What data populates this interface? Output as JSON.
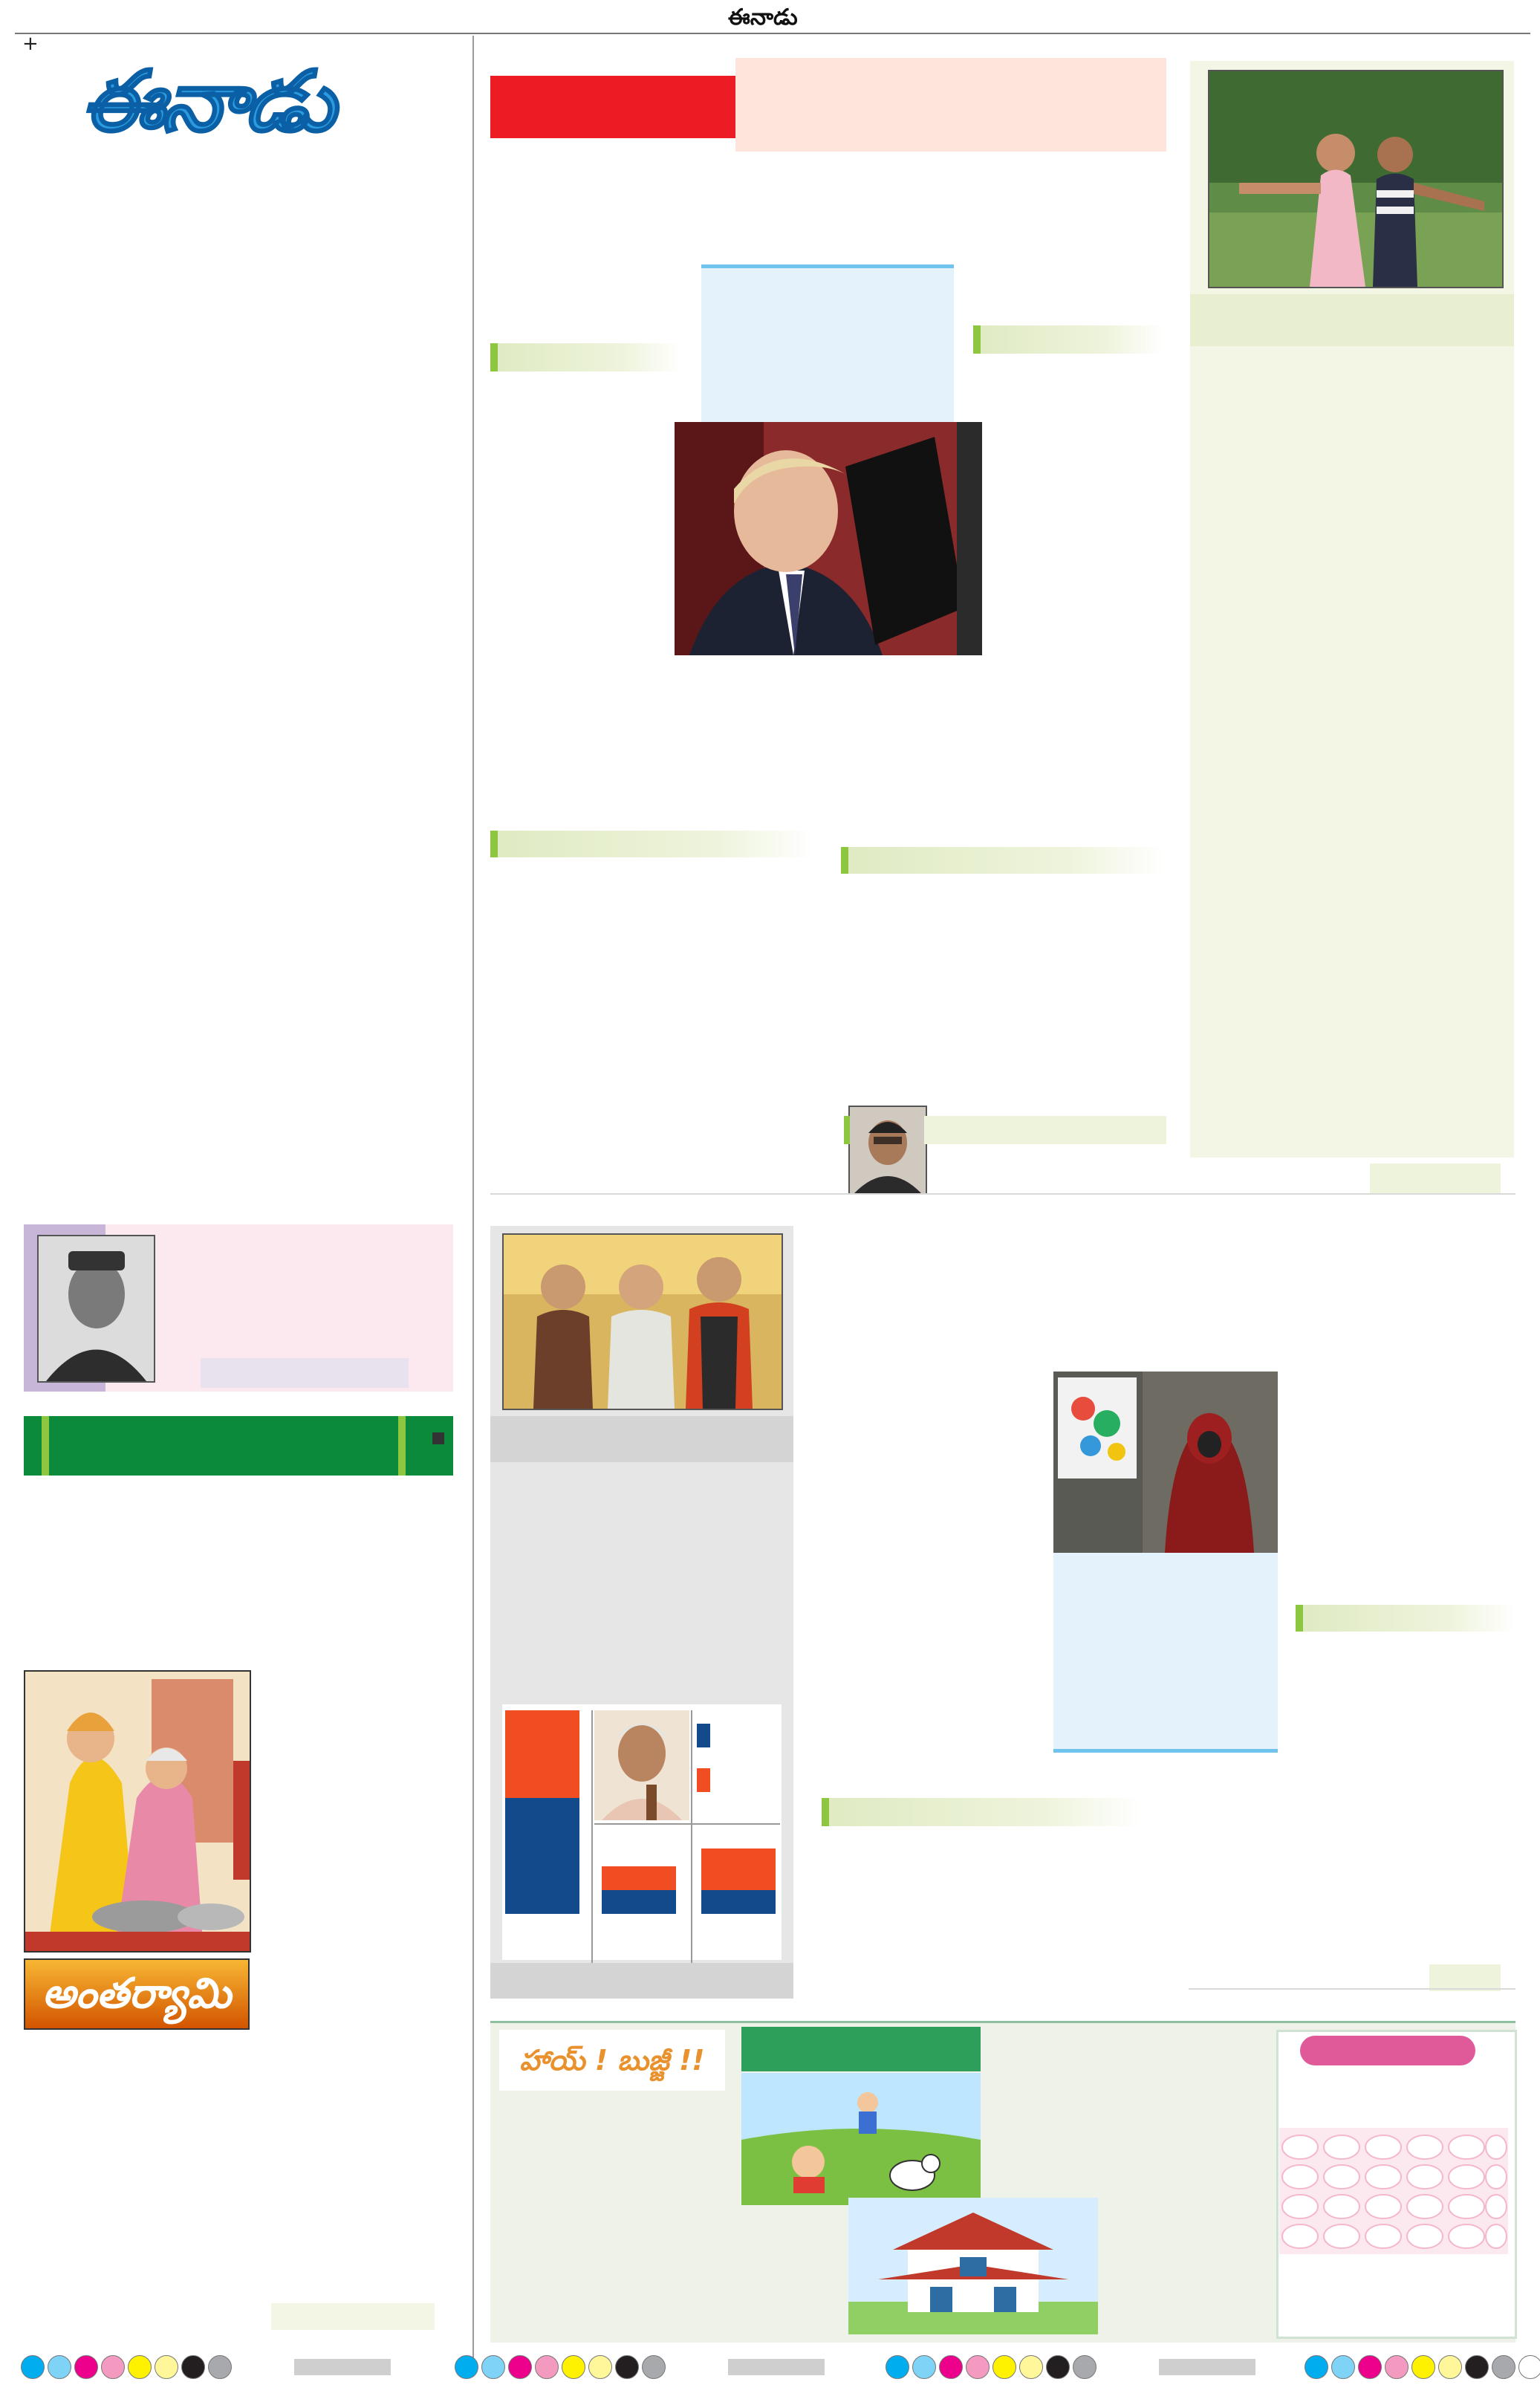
{
  "masthead": {
    "top_label": "ఈనాడు",
    "logo_text": "ఈనాడు",
    "crop_mark": "+"
  },
  "sections": {
    "antaryami_logo": "అంతర్యామి",
    "hai_bujji_logo": "హాయ్ ! బుజ్జీ !!"
  },
  "colors": {
    "red_banner": "#ed1c24",
    "peach_box": "#fde5dc",
    "light_blue_box": "#e4f3fb",
    "blue_rule": "#6fc3ec",
    "green_accent": "#8dc63f",
    "pale_green": "#f3f6e4",
    "pink_box": "#fce8ef",
    "lavender": "#c8b6d8",
    "dark_green_bar": "#0a8a3a",
    "gray_box": "#e6e6e6",
    "chart_orange": "#f04d23",
    "chart_navy": "#124a8b",
    "magenta_pill": "#e05a9a"
  },
  "registration_marks": {
    "colors": [
      "#00aeef",
      "#7fd3f7",
      "#ec008c",
      "#f49ac1",
      "#fff200",
      "#fff799",
      "#231f20",
      "#a7a9ac"
    ]
  }
}
